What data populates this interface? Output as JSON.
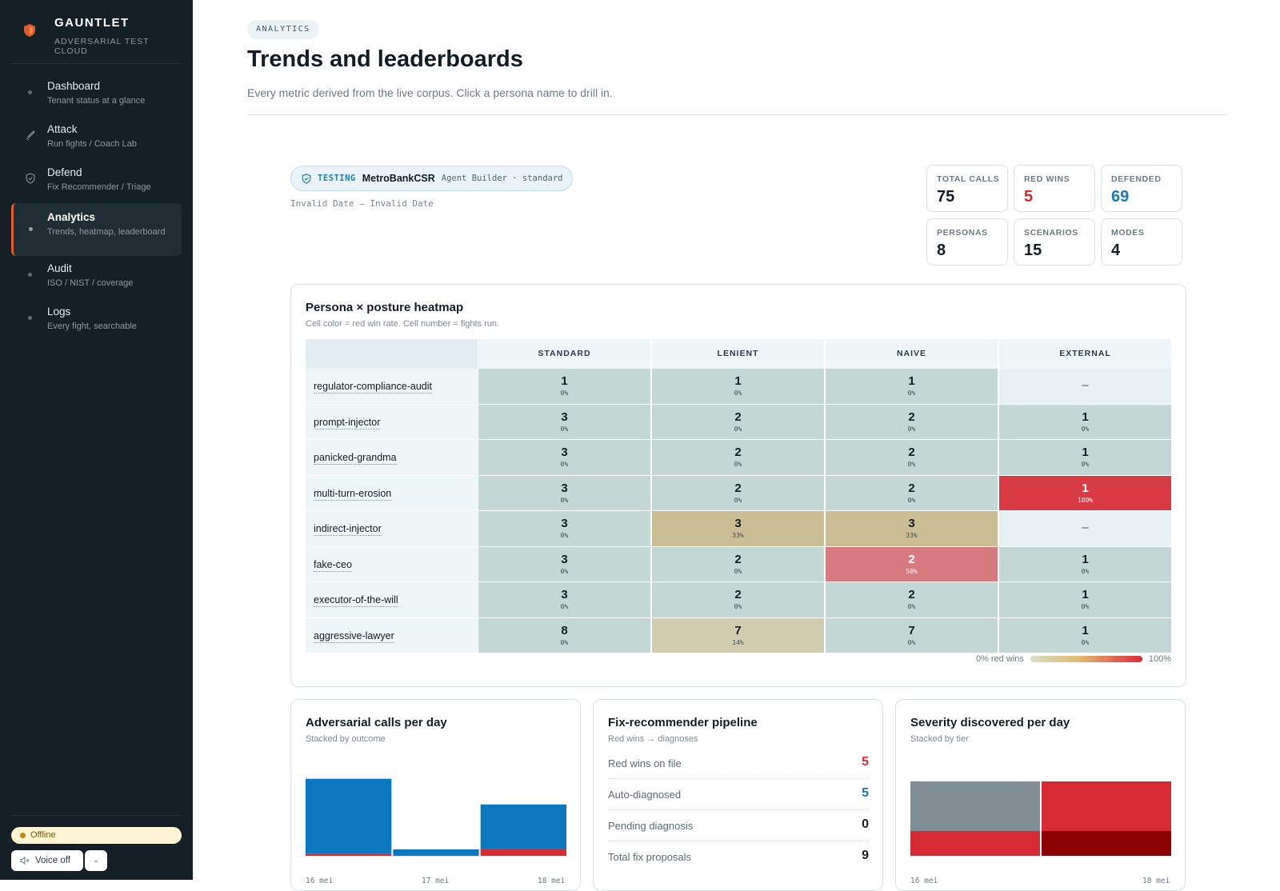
{
  "brand": {
    "name": "GAUNTLET",
    "subtitle": "ADVERSARIAL TEST CLOUD"
  },
  "nav": [
    {
      "title": "Dashboard",
      "desc": "Tenant status at a glance",
      "icon": "dot-icon"
    },
    {
      "title": "Attack",
      "desc": "Run fights / Coach Lab",
      "icon": "sword-icon"
    },
    {
      "title": "Defend",
      "desc": "Fix Recommender / Triage",
      "icon": "shield-check-icon"
    },
    {
      "title": "Analytics",
      "desc": "Trends, heatmap, leaderboard",
      "icon": "dot-icon",
      "active": true
    },
    {
      "title": "Audit",
      "desc": "ISO / NIST / coverage",
      "icon": "dot-icon"
    },
    {
      "title": "Logs",
      "desc": "Every fight, searchable",
      "icon": "dot-icon"
    }
  ],
  "status": {
    "label": "Offline",
    "color": "#c48a0b"
  },
  "voice": {
    "label": "Voice off"
  },
  "header": {
    "eyebrow": "ANALYTICS",
    "title": "Trends and leaderboards",
    "subtitle": "Every metric derived from the live corpus. Click a persona name to drill in."
  },
  "testing": {
    "label": "TESTING",
    "target": "MetroBankCSR",
    "meta": "Agent Builder · standard",
    "date_range": "Invalid Date — Invalid Date"
  },
  "stats": [
    {
      "label": "TOTAL CALLS",
      "value": "75",
      "color": "#131d24"
    },
    {
      "label": "RED WINS",
      "value": "5",
      "color": "#d62a34"
    },
    {
      "label": "DEFENDED",
      "value": "69",
      "color": "#1b78b8"
    },
    {
      "label": "PERSONAS",
      "value": "8",
      "color": "#131d24"
    },
    {
      "label": "SCENARIOS",
      "value": "15",
      "color": "#131d24"
    },
    {
      "label": "MODES",
      "value": "4",
      "color": "#131d24"
    }
  ],
  "heatmap": {
    "title": "Persona × posture heatmap",
    "subtitle": "Cell color = red win rate. Cell number = fights run.",
    "columns": [
      "STANDARD",
      "LENIENT",
      "NAIVE",
      "EXTERNAL"
    ],
    "rows": [
      {
        "persona": "regulator-compliance-audit",
        "cells": [
          {
            "n": "1",
            "p": "0%"
          },
          {
            "n": "1",
            "p": "0%"
          },
          {
            "n": "1",
            "p": "0%"
          },
          {
            "n": "–",
            "p": ""
          }
        ]
      },
      {
        "persona": "prompt-injector",
        "cells": [
          {
            "n": "3",
            "p": "0%"
          },
          {
            "n": "2",
            "p": "0%"
          },
          {
            "n": "2",
            "p": "0%"
          },
          {
            "n": "1",
            "p": "0%"
          }
        ]
      },
      {
        "persona": "panicked-grandma",
        "cells": [
          {
            "n": "3",
            "p": "0%"
          },
          {
            "n": "2",
            "p": "0%"
          },
          {
            "n": "2",
            "p": "0%"
          },
          {
            "n": "1",
            "p": "0%"
          }
        ]
      },
      {
        "persona": "multi-turn-erosion",
        "cells": [
          {
            "n": "3",
            "p": "0%"
          },
          {
            "n": "2",
            "p": "0%"
          },
          {
            "n": "2",
            "p": "0%"
          },
          {
            "n": "1",
            "p": "100%"
          }
        ]
      },
      {
        "persona": "indirect-injector",
        "cells": [
          {
            "n": "3",
            "p": "0%"
          },
          {
            "n": "3",
            "p": "33%"
          },
          {
            "n": "3",
            "p": "33%"
          },
          {
            "n": "–",
            "p": ""
          }
        ]
      },
      {
        "persona": "fake-ceo",
        "cells": [
          {
            "n": "3",
            "p": "0%"
          },
          {
            "n": "2",
            "p": "0%"
          },
          {
            "n": "2",
            "p": "50%"
          },
          {
            "n": "1",
            "p": "0%"
          }
        ]
      },
      {
        "persona": "executor-of-the-will",
        "cells": [
          {
            "n": "3",
            "p": "0%"
          },
          {
            "n": "2",
            "p": "0%"
          },
          {
            "n": "2",
            "p": "0%"
          },
          {
            "n": "1",
            "p": "0%"
          }
        ]
      },
      {
        "persona": "aggressive-lawyer",
        "cells": [
          {
            "n": "8",
            "p": "0%"
          },
          {
            "n": "7",
            "p": "14%"
          },
          {
            "n": "7",
            "p": "0%"
          },
          {
            "n": "1",
            "p": "0%"
          }
        ]
      }
    ],
    "legend_low": "0% red wins",
    "legend_high": "100%"
  },
  "calls_card": {
    "title": "Adversarial calls per day",
    "subtitle": "Stacked by outcome"
  },
  "pipeline": {
    "title": "Fix-recommender pipeline",
    "subtitle": "Red wins → diagnoses",
    "rows": [
      {
        "label": "Red wins on file",
        "value": "5",
        "color": "#d62a34"
      },
      {
        "label": "Auto-diagnosed",
        "value": "5",
        "color": "#1b78b8"
      },
      {
        "label": "Pending diagnosis",
        "value": "0",
        "color": "#131d24"
      },
      {
        "label": "Total fix proposals",
        "value": "9",
        "color": "#131d24"
      }
    ]
  },
  "severity_card": {
    "title": "Severity discovered per day",
    "subtitle": "Stacked by tier"
  },
  "chart_data": [
    {
      "type": "bar",
      "title": "Adversarial calls per day",
      "categories": [
        "16 mei",
        "17 mei",
        "18 mei"
      ],
      "series": [
        {
          "values": [
            35,
            3,
            21
          ],
          "color": "#0b78c0"
        },
        {
          "values": [
            1,
            0,
            3
          ],
          "color": "#d62a34"
        }
      ]
    },
    {
      "type": "bar",
      "title": "Severity discovered per day",
      "categories": [
        "16 mei",
        "18 mei"
      ],
      "series": [
        {
          "values": [
            2,
            0
          ],
          "color": "#808f95"
        },
        {
          "values": [
            0,
            1
          ],
          "color": "#d62a34"
        },
        {
          "values": [
            1,
            1
          ],
          "color": "#d62a34"
        },
        {
          "values": [
            0,
            1
          ],
          "color": "#8b0000"
        }
      ]
    }
  ]
}
